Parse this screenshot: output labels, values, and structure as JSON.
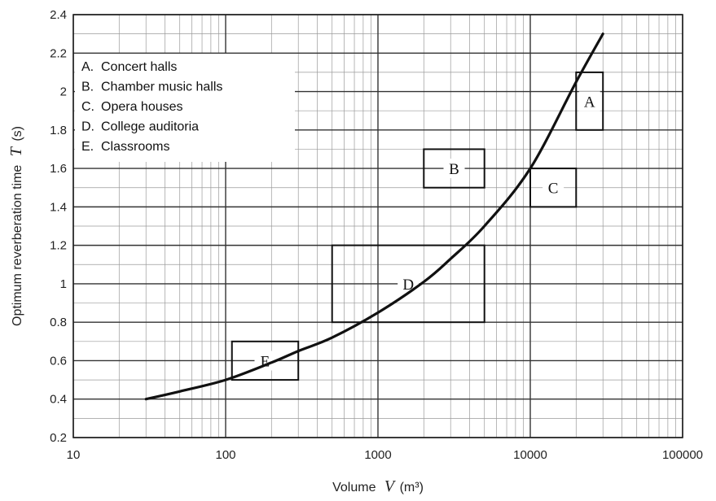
{
  "chart_data": {
    "type": "line",
    "xlabel": {
      "text": "Volume",
      "symbol": "V",
      "unit": "(m³)"
    },
    "ylabel": {
      "text": "Optimum reverberation time",
      "symbol": "T",
      "unit": "(s)"
    },
    "xscale": "log",
    "xlim": [
      10,
      100000
    ],
    "ylim": [
      0.2,
      2.4
    ],
    "x_ticks": [
      10,
      100,
      1000,
      10000,
      100000
    ],
    "x_tick_labels": [
      "10",
      "100",
      "1000",
      "10000",
      "100000"
    ],
    "y_ticks": [
      0.2,
      0.4,
      0.6,
      0.8,
      1.0,
      1.2,
      1.4,
      1.6,
      1.8,
      2.0,
      2.2,
      2.4
    ],
    "y_tick_labels": [
      "0.2",
      "0.4",
      "0.6",
      "0.8",
      "1",
      "1.2",
      "1.4",
      "1.6",
      "1.8",
      "2",
      "2.2",
      "2.4"
    ],
    "grid": true,
    "curve": {
      "x": [
        30,
        50,
        100,
        200,
        300,
        500,
        1000,
        2000,
        3000,
        5000,
        10000,
        20000,
        30000
      ],
      "y": [
        0.4,
        0.44,
        0.5,
        0.59,
        0.65,
        0.72,
        0.85,
        1.01,
        1.13,
        1.3,
        1.6,
        2.05,
        2.3
      ]
    },
    "regions": [
      {
        "label": "A",
        "x": [
          20000,
          30000
        ],
        "y": [
          1.8,
          2.1
        ]
      },
      {
        "label": "B",
        "x": [
          2000,
          5000
        ],
        "y": [
          1.5,
          1.7
        ]
      },
      {
        "label": "C",
        "x": [
          10000,
          20000
        ],
        "y": [
          1.4,
          1.6
        ]
      },
      {
        "label": "D",
        "x": [
          500,
          5000
        ],
        "y": [
          0.8,
          1.2
        ]
      },
      {
        "label": "E",
        "x": [
          110,
          300
        ],
        "y": [
          0.5,
          0.7
        ]
      }
    ],
    "legend": {
      "position": "top-left",
      "entries": [
        {
          "key": "A.",
          "text": "Concert halls"
        },
        {
          "key": "B.",
          "text": "Chamber music halls"
        },
        {
          "key": "C.",
          "text": "Opera houses"
        },
        {
          "key": "D.",
          "text": "College auditoria"
        },
        {
          "key": "E.",
          "text": "Classrooms"
        }
      ]
    }
  }
}
